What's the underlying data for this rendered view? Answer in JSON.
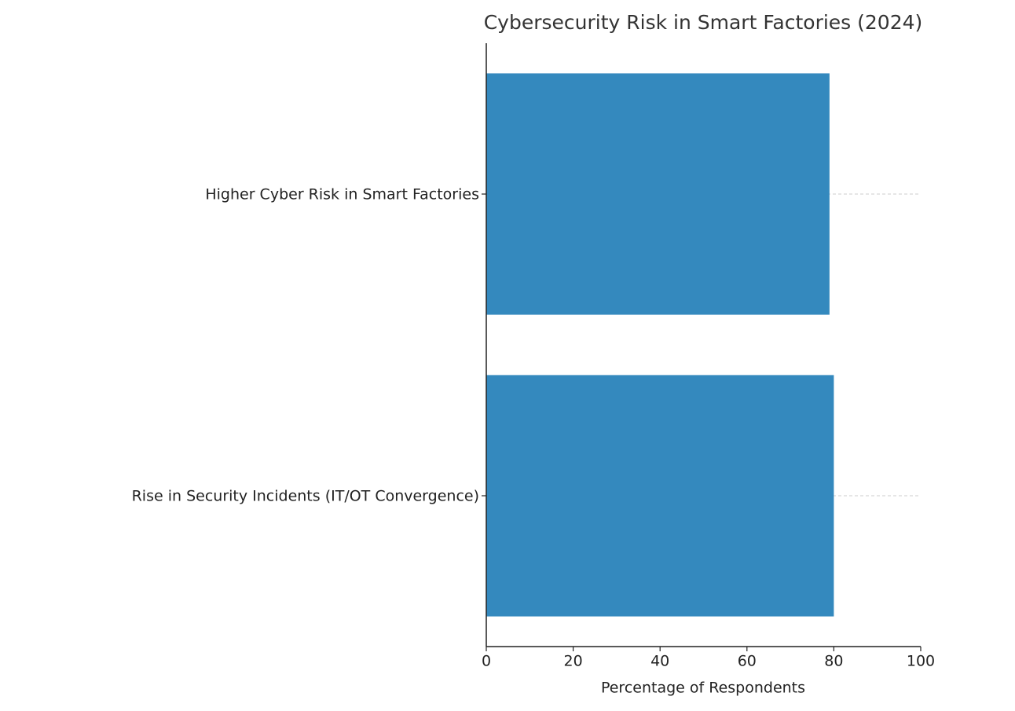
{
  "chart_data": {
    "type": "bar",
    "orientation": "horizontal",
    "title": "Cybersecurity Risk in Smart Factories (2024)",
    "xlabel": "Percentage of Respondents",
    "categories": [
      "Higher Cyber Risk in Smart Factories",
      "Rise in Security Incidents (IT/OT Convergence)"
    ],
    "values": [
      79,
      80
    ],
    "color": "#3489be",
    "xlim": [
      0,
      100
    ],
    "xticks": [
      0,
      20,
      40,
      60,
      80,
      100
    ],
    "grid": "y"
  }
}
